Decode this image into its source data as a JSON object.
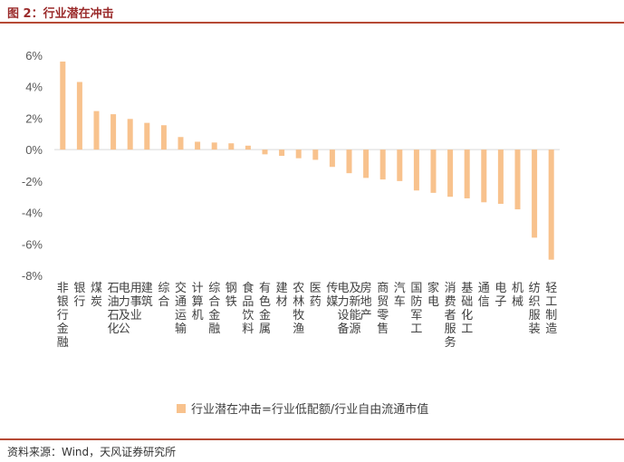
{
  "figure_title": "图 2：行业潜在冲击",
  "source_note": "资料来源：Wind，天风证券研究所",
  "colors": {
    "bar": "#F8C28D",
    "rule": "#B64A35",
    "title": "#9A2A2A"
  },
  "chart_data": {
    "type": "bar",
    "title": "",
    "ylim": [
      -8,
      6
    ],
    "yticks": [
      6,
      4,
      2,
      0,
      -2,
      -4,
      -6,
      -8
    ],
    "ytick_labels": [
      "6%",
      "4%",
      "2%",
      "0%",
      "-2%",
      "-4%",
      "-6%",
      "-8%"
    ],
    "categories": [
      "非银行金融",
      "银行",
      "煤炭",
      "石油石化",
      "电力及公用事业",
      "建筑",
      "综合",
      "交通运输",
      "计算机",
      "综合金融",
      "钢铁",
      "食品饮料",
      "有色金属",
      "建材",
      "农林牧渔",
      "医药",
      "传媒",
      "电力设备及新能源",
      "房地产",
      "商贸零售",
      "汽车",
      "国防军工",
      "家电",
      "消费者服务",
      "基础化工",
      "通信",
      "电子",
      "机械",
      "纺织服装",
      "轻工制造"
    ],
    "series": [
      {
        "name": "行业潜在冲击=行业低配额/行业自由流通市值",
        "values": [
          5.6,
          4.3,
          2.45,
          2.25,
          1.95,
          1.7,
          1.55,
          0.8,
          0.5,
          0.45,
          0.4,
          0.25,
          -0.3,
          -0.4,
          -0.55,
          -0.65,
          -1.1,
          -1.5,
          -1.8,
          -1.9,
          -2.0,
          -2.6,
          -2.75,
          -3.0,
          -3.1,
          -3.35,
          -3.45,
          -3.8,
          -5.6,
          -7.0
        ]
      }
    ],
    "legend_position": "bottom",
    "grid": false
  }
}
